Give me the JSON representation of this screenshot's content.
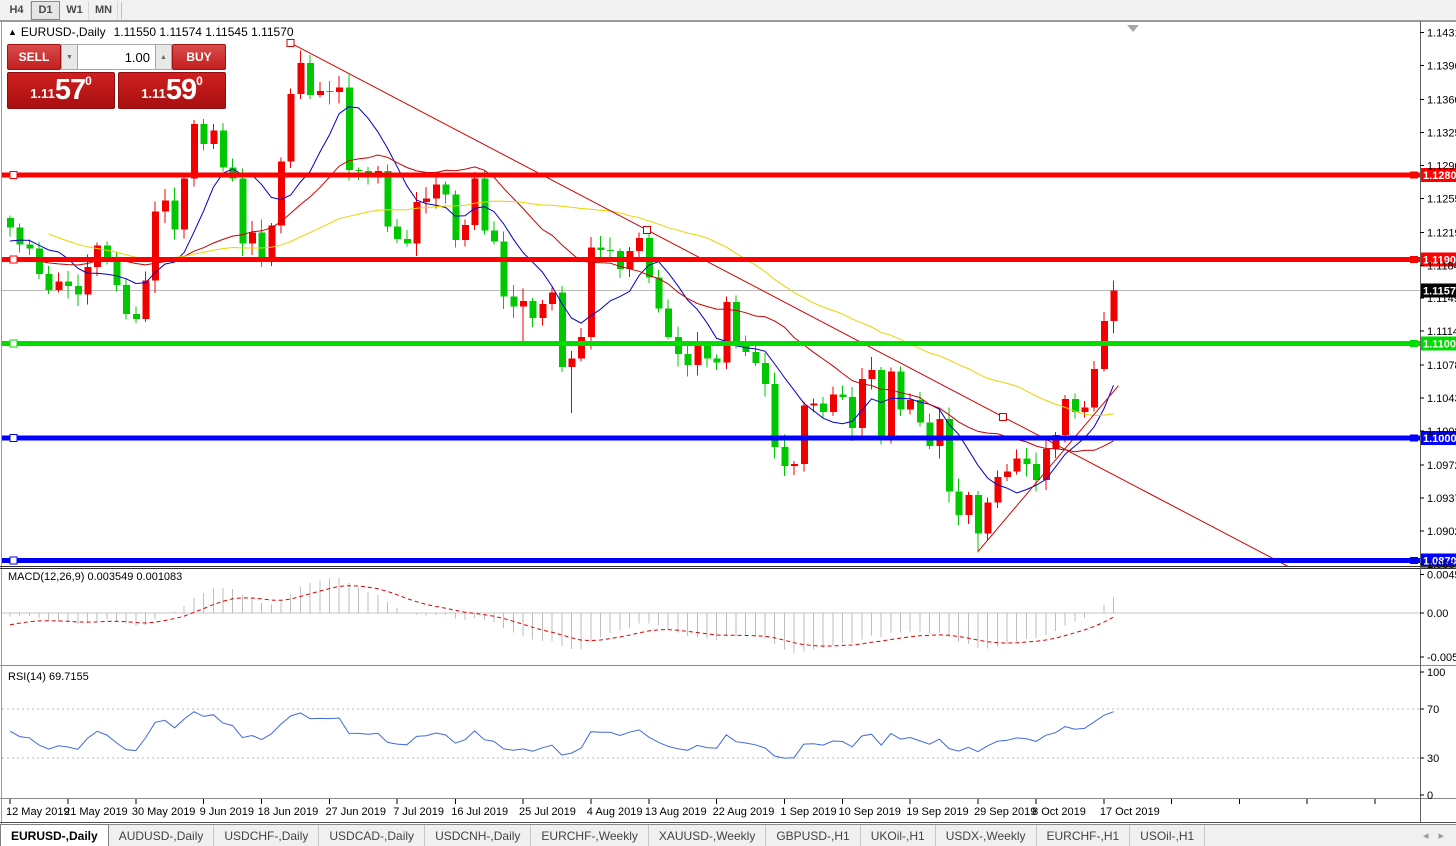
{
  "toolbar": {
    "buttons": [
      {
        "label": "H4",
        "active": false
      },
      {
        "label": "D1",
        "active": true
      },
      {
        "label": "W1",
        "active": false
      },
      {
        "label": "MN",
        "active": false
      }
    ]
  },
  "chart": {
    "title_marker": "▲",
    "symbol_label": "EURUSD-,Daily",
    "ohlc": "1.11550 1.11574 1.11545 1.11570",
    "trade_panel": {
      "sell_label": "SELL",
      "buy_label": "BUY",
      "volume": "1.00",
      "sell_price": {
        "small": "1.11",
        "big": "57",
        "sup": "0"
      },
      "buy_price": {
        "small": "1.11",
        "big": "59",
        "sup": "0"
      }
    }
  },
  "icons": {
    "volume_down_icon": "▼",
    "volume_up_icon": "▲",
    "tab_scroll_left": "◂",
    "tab_scroll_right": "▸"
  },
  "indicators": {
    "macd_label": "MACD(12,26,9) 0.003549 0.001083",
    "rsi_label": "RSI(14) 69.7155"
  },
  "tabs": {
    "items": [
      {
        "label": "EURUSD-,Daily",
        "active": true
      },
      {
        "label": "AUDUSD-,Daily",
        "active": false
      },
      {
        "label": "USDCHF-,Daily",
        "active": false
      },
      {
        "label": "USDCAD-,Daily",
        "active": false
      },
      {
        "label": "USDCNH-,Daily",
        "active": false
      },
      {
        "label": "EURCHF-,Weekly",
        "active": false
      },
      {
        "label": "XAUUSD-,Weekly",
        "active": false
      },
      {
        "label": "GBPUSD-,H1",
        "active": false
      },
      {
        "label": "UKOil-,H1",
        "active": false
      },
      {
        "label": "USDX-,Weekly",
        "active": false
      },
      {
        "label": "EURCHF-,H1",
        "active": false
      },
      {
        "label": "USOil-,H1",
        "active": false
      }
    ]
  },
  "colors": {
    "bull": "#f20000",
    "bear": "#00c800",
    "ma_fast": "#0000c8",
    "ma_mid": "#c80000",
    "ma_slow": "#e8d400",
    "trendline": "#d40000",
    "hline_red": "#ff0000",
    "hline_green": "#00dc00",
    "hline_blue": "#0000ff",
    "price_line": "#b8b8b8",
    "price_tag_bg": "#000000",
    "macd_hist": "#bebebe",
    "macd_signal": "#e00000",
    "rsi": "#4169e1",
    "grid_dash": "#b8b8b8",
    "axis": "#7a7a7a",
    "shift_marker": "#a8a8a8"
  },
  "chart_data": {
    "type": "candlestick",
    "symbol": "EURUSD-",
    "timeframe": "Daily",
    "current_price": {
      "value": 1.1157,
      "label": "1.11570"
    },
    "y_axis_ticks": [
      "1.14310",
      "1.13960",
      "1.13600",
      "1.13250",
      "1.12900",
      "1.12550",
      "1.12190",
      "1.11840",
      "1.11490",
      "1.11140",
      "1.10780",
      "1.10430",
      "1.10080",
      "1.09720",
      "1.09370",
      "1.09020",
      "1.08670"
    ],
    "x_axis_labels": [
      {
        "label": "12 May 2019",
        "index": 0
      },
      {
        "label": "21 May 2019",
        "index": 6
      },
      {
        "label": "30 May 2019",
        "index": 13
      },
      {
        "label": "9 Jun 2019",
        "index": 20
      },
      {
        "label": "18 Jun 2019",
        "index": 26
      },
      {
        "label": "27 Jun 2019",
        "index": 33
      },
      {
        "label": "7 Jul 2019",
        "index": 40
      },
      {
        "label": "16 Jul 2019",
        "index": 46
      },
      {
        "label": "25 Jul 2019",
        "index": 53
      },
      {
        "label": "4 Aug 2019",
        "index": 60
      },
      {
        "label": "13 Aug 2019",
        "index": 66
      },
      {
        "label": "22 Aug 2019",
        "index": 73
      },
      {
        "label": "1 Sep 2019",
        "index": 80
      },
      {
        "label": "10 Sep 2019",
        "index": 86
      },
      {
        "label": "19 Sep 2019",
        "index": 93
      },
      {
        "label": "29 Sep 2019",
        "index": 100
      },
      {
        "label": "8 Oct 2019",
        "index": 106
      },
      {
        "label": "17 Oct 2019",
        "index": 113
      }
    ],
    "extra_x_ticks": [
      120,
      127,
      134,
      141
    ],
    "pre_closes": [
      1.1339,
      1.1325,
      1.1302,
      1.131,
      1.1286,
      1.127,
      1.1255,
      1.1262,
      1.124,
      1.1228,
      1.1245,
      1.1221,
      1.1205,
      1.1219,
      1.1226,
      1.1235,
      1.122,
      1.1212,
      1.1226,
      1.1231,
      1.1218,
      1.1195,
      1.1187,
      1.1198,
      1.119,
      1.1177,
      1.1162,
      1.115,
      1.1139,
      1.1153,
      1.117,
      1.1183,
      1.1175,
      1.1198,
      1.1205,
      1.1216,
      1.1198,
      1.1184,
      1.1219,
      1.1234
    ],
    "closes": [
      1.1224,
      1.1206,
      1.1202,
      1.1175,
      1.1158,
      1.1167,
      1.1162,
      1.1153,
      1.1182,
      1.1205,
      1.1193,
      1.1163,
      1.1132,
      1.1127,
      1.1168,
      1.1241,
      1.1253,
      1.1222,
      1.1276,
      1.1334,
      1.1313,
      1.1327,
      1.1288,
      1.1276,
      1.1207,
      1.1219,
      1.1193,
      1.1226,
      1.1294,
      1.1366,
      1.1399,
      1.1365,
      1.1369,
      1.1368,
      1.1373,
      1.1285,
      1.1284,
      1.1278,
      1.1284,
      1.1225,
      1.1212,
      1.1207,
      1.1251,
      1.1255,
      1.127,
      1.1259,
      1.1211,
      1.1227,
      1.1276,
      1.1221,
      1.1209,
      1.1151,
      1.114,
      1.1146,
      1.1128,
      1.1143,
      1.1155,
      1.1076,
      1.1085,
      1.1108,
      1.1203,
      1.12,
      1.1199,
      1.118,
      1.1199,
      1.1213,
      1.1171,
      1.1138,
      1.1108,
      1.109,
      1.1078,
      1.11,
      1.1085,
      1.1081,
      1.1145,
      1.1101,
      1.1092,
      1.108,
      1.1058,
      1.0991,
      1.0971,
      1.0973,
      1.1035,
      1.1037,
      1.1028,
      1.1047,
      1.1044,
      1.1011,
      1.1063,
      1.1073,
      1.1003,
      1.1071,
      1.1031,
      1.1041,
      1.1017,
      1.0992,
      1.1021,
      1.0944,
      1.0919,
      1.094,
      1.0899,
      1.0932,
      1.0959,
      1.0965,
      1.0979,
      1.0973,
      1.0956,
      1.0989,
      1.1004,
      1.1042,
      1.1028,
      1.1033,
      1.1074,
      1.1125,
      1.1157
    ],
    "wick_overrides": [
      {
        "i": 30,
        "high": 1.1412
      },
      {
        "i": 53,
        "low": 1.1101
      },
      {
        "i": 58,
        "low": 1.1027
      },
      {
        "i": 100,
        "low": 1.0879
      }
    ],
    "moving_averages": [
      {
        "period": 8,
        "color_key": "ma_fast"
      },
      {
        "period": 21,
        "color_key": "ma_mid"
      },
      {
        "period": 45,
        "color_key": "ma_slow"
      }
    ],
    "hlines": [
      {
        "price": 1.12801,
        "label": "1.12801",
        "color_key": "hline_red"
      },
      {
        "price": 1.11901,
        "label": "1.11901",
        "color_key": "hline_red"
      },
      {
        "price": 1.11009,
        "label": "1.11009",
        "color_key": "hline_green"
      },
      {
        "price": 1.10008,
        "label": "1.10008",
        "color_key": "hline_blue"
      },
      {
        "price": 1.08704,
        "label": "1.08704",
        "color_key": "hline_blue"
      }
    ],
    "trendlines": [
      {
        "name": "descending-resistance",
        "i1": 29,
        "p1": 1.142,
        "i2": 102.6,
        "p2": 1.1023,
        "ray": true,
        "handles": [
          29,
          65.8,
          102.6
        ]
      },
      {
        "name": "ascending-support",
        "i1": 100,
        "p1": 1.088,
        "i2": 114.5,
        "p2": 1.1056,
        "ray": false,
        "handles": []
      }
    ],
    "macd": {
      "fast": 12,
      "slow": 26,
      "signal": 9,
      "value": 0.003549,
      "signal_value": 0.001083,
      "ticks": [
        {
          "v": 0.00453,
          "label": "0.00453"
        },
        {
          "v": 0.0,
          "label": "0.00"
        },
        {
          "v": -0.0052,
          "label": "-0.00520"
        }
      ]
    },
    "rsi": {
      "period": 14,
      "value": 69.7155,
      "ticks": [
        {
          "v": 100,
          "label": "100"
        },
        {
          "v": 70,
          "label": "70"
        },
        {
          "v": 30,
          "label": "30"
        },
        {
          "v": 0,
          "label": "0"
        }
      ],
      "levels": [
        70,
        30
      ]
    }
  }
}
